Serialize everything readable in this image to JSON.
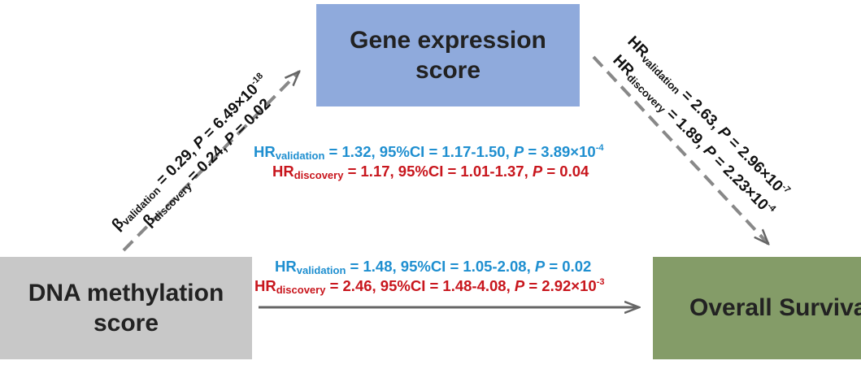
{
  "nodes": {
    "gene": {
      "line1": "Gene expression",
      "line2": "score"
    },
    "dna": {
      "line1": "DNA methylation",
      "line2": "score"
    },
    "os": {
      "label": "Overall Surviva"
    }
  },
  "colors": {
    "gene_box": "#8faadc",
    "dna_box": "#c8c8c8",
    "os_box": "#849c68",
    "validation_text": "#1f8fd0",
    "discovery_text": "#c8161d",
    "arrow": "#777777"
  },
  "edges": {
    "dna_to_gene": {
      "validation": {
        "symbol": "β",
        "sub": "validation",
        "value": " = 0.29, ",
        "p_label": "P",
        "p_value": " = 6.49×10",
        "p_exp": "-18"
      },
      "discovery": {
        "symbol": "β",
        "sub": "discovery",
        "value": " = 0.24, ",
        "p_label": "P",
        "p_value": " = 0.02"
      }
    },
    "gene_to_os": {
      "validation": {
        "symbol": "HR",
        "sub": "validation",
        "value": " = 2.63, ",
        "p_label": "P",
        "p_value": " = 2.96×10",
        "p_exp": "-7"
      },
      "discovery": {
        "symbol": "HR",
        "sub": "discovery",
        "value": " = 1.89, ",
        "p_label": "P",
        "p_value": " = 2.23×10",
        "p_exp": "-4"
      }
    },
    "indirect": {
      "validation": {
        "symbol": "HR",
        "sub": "validation",
        "value": " =  1.32, 95%CI = 1.17-1.50, ",
        "p_label": "P",
        "p_value": " = 3.89×10",
        "p_exp": "-4"
      },
      "discovery": {
        "symbol": "HR",
        "sub": "discovery",
        "value": " = 1.17, 95%CI = 1.01-1.37, ",
        "p_label": "P",
        "p_value": " = 0.04"
      }
    },
    "dna_to_os": {
      "validation": {
        "symbol": "HR",
        "sub": "validation",
        "value": " =  1.48, 95%CI = 1.05-2.08, ",
        "p_label": "P",
        "p_value": " = 0.02"
      },
      "discovery": {
        "symbol": "HR",
        "sub": "discovery",
        "value": " = 2.46, 95%CI = 1.48-4.08, ",
        "p_label": "P",
        "p_value": " = 2.92×10",
        "p_exp": "-3"
      }
    }
  }
}
